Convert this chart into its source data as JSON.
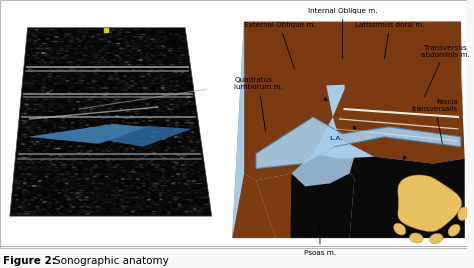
{
  "bg_color": "#f8f8f8",
  "brown": "#7B3A10",
  "light_blue": "#a8cce8",
  "blue_catheter": "#4488bb",
  "black": "#0a0a0a",
  "yellow": "#e8c060",
  "white": "#ffffff",
  "label_fontsize": 5.2,
  "caption_fontsize": 7.5,
  "labels": {
    "internal_oblique": "Internal Oblique m.",
    "external_oblique": "External Oblique m.",
    "latissimus": "Latissimus dorsi m.",
    "transversus": "Transversus\nabdominis m.",
    "fascia": "Fascia\ntransversalis",
    "quadratus": "Quadratus\nlumborum m.",
    "psoas": "Psoas m.",
    "la": "L.A."
  }
}
